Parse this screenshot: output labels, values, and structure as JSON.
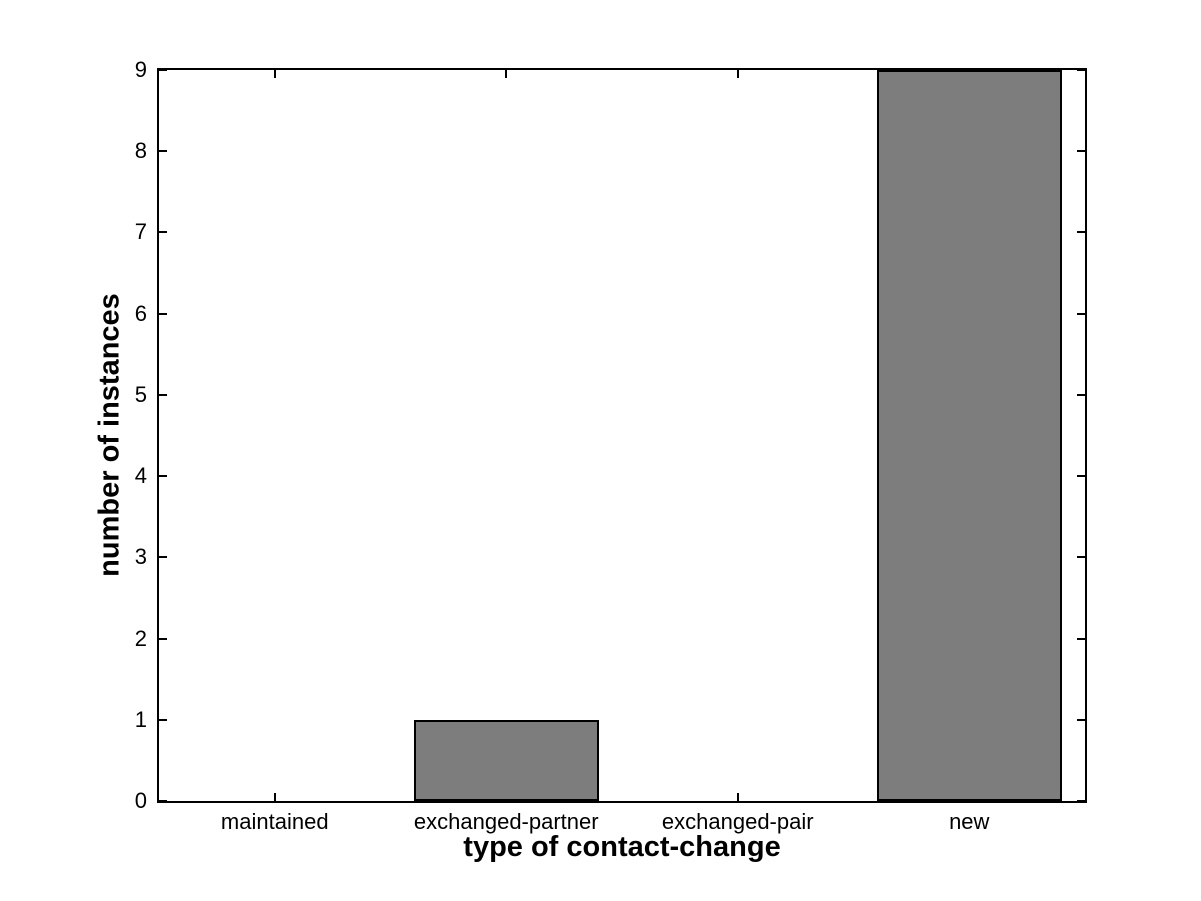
{
  "chart_data": {
    "type": "bar",
    "categories": [
      "maintained",
      "exchanged-partner",
      "exchanged-pair",
      "new"
    ],
    "values": [
      0,
      1,
      0,
      9
    ],
    "title": "",
    "xlabel": "type of contact-change",
    "ylabel": "number of instances",
    "ylim": [
      0,
      9
    ],
    "yticks": [
      0,
      1,
      2,
      3,
      4,
      5,
      6,
      7,
      8,
      9
    ],
    "bar_width_fraction": 0.8,
    "legend": "none",
    "grid": "off",
    "colors": {
      "bar_fill": "#7d7d7d",
      "bar_edge": "#000000",
      "axis": "#000000",
      "background": "#ffffff",
      "text": "#000000"
    }
  }
}
